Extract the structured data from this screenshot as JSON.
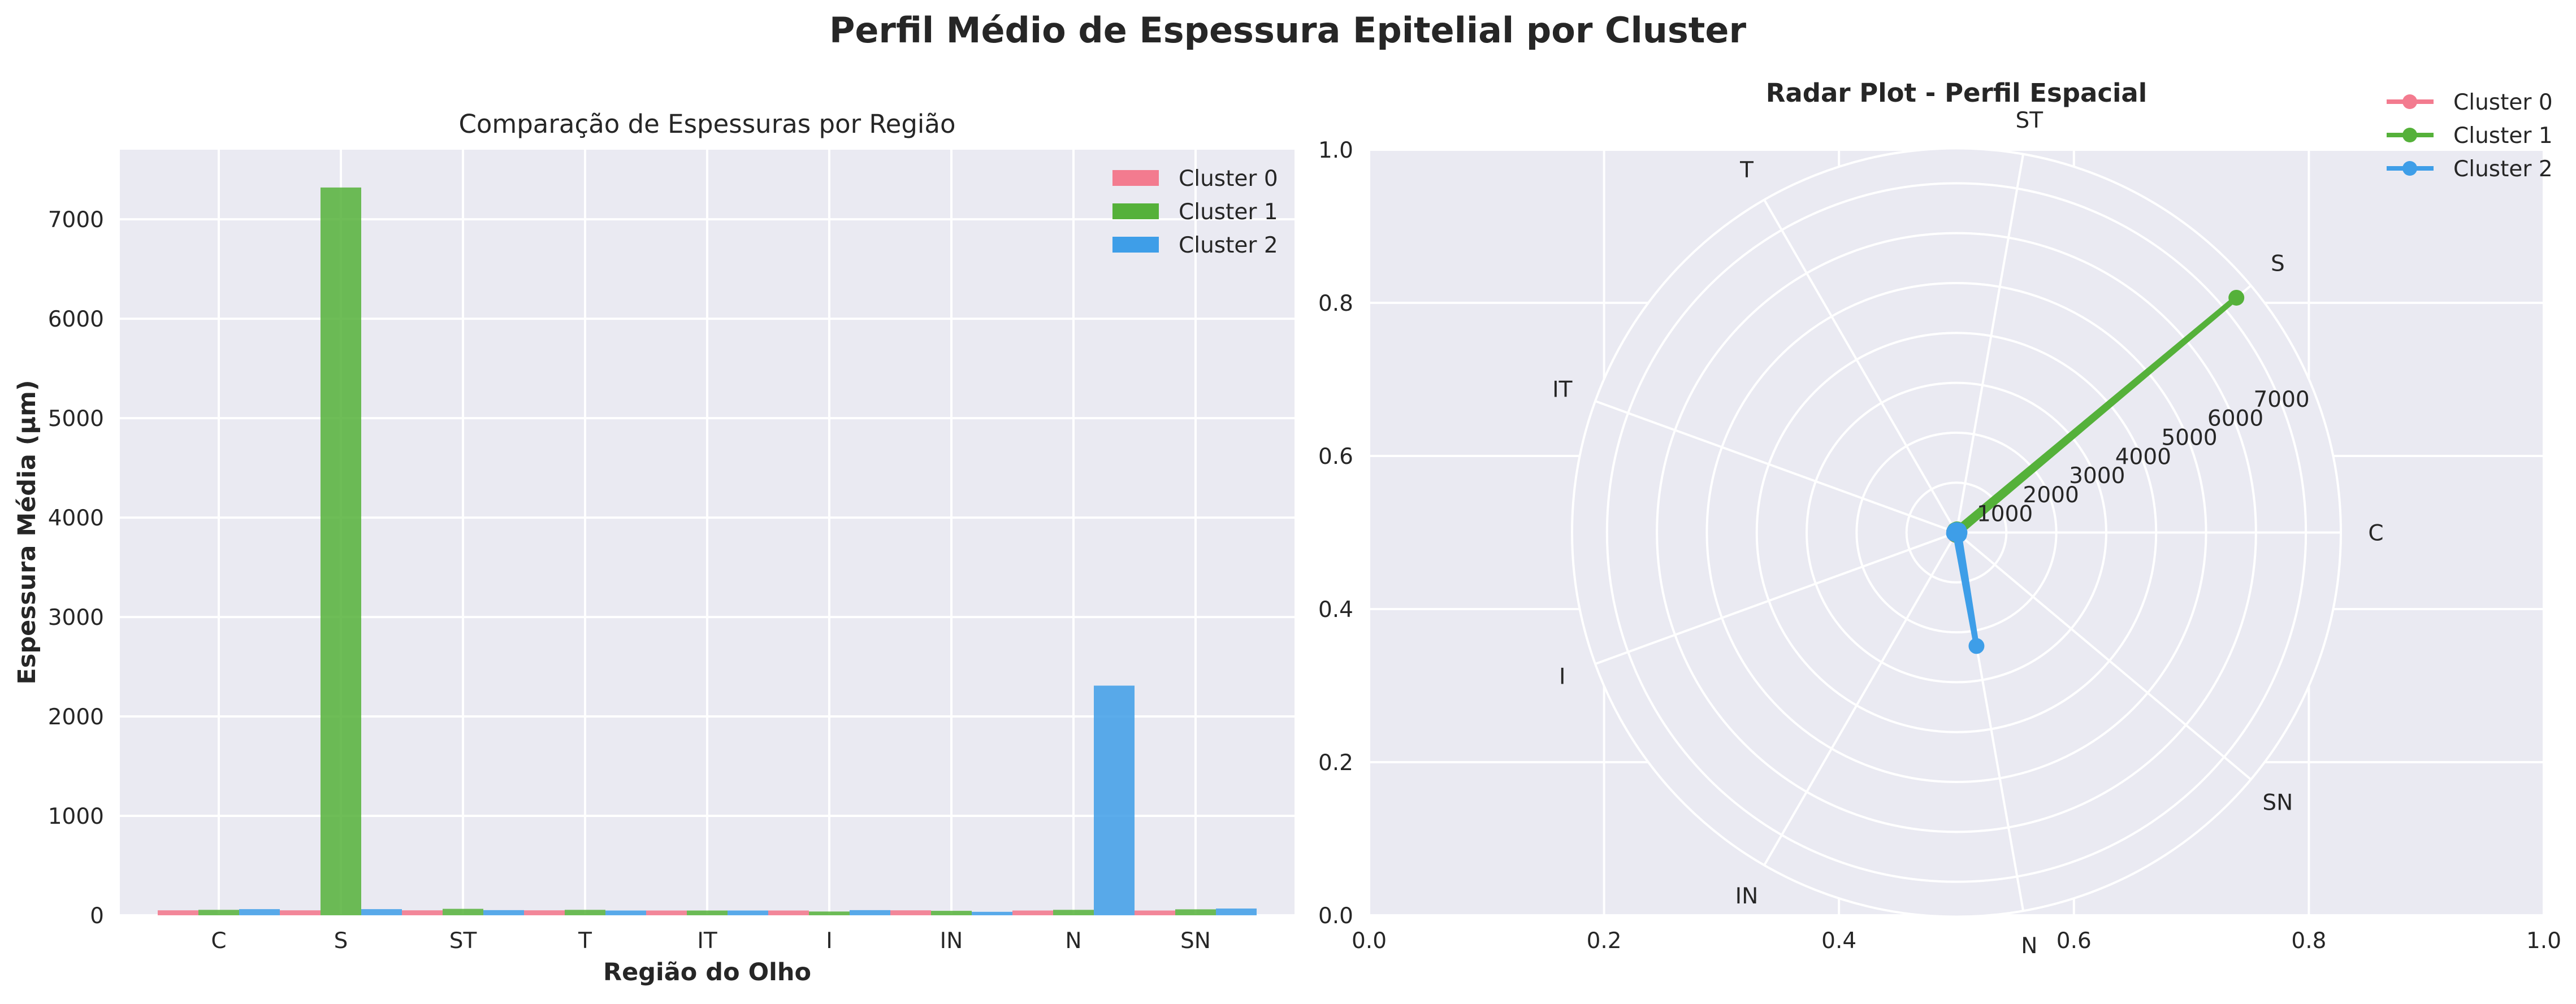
{
  "title": "Perfil Médio de Espessura Epitelial por Cluster",
  "colors": {
    "Cluster 0": "#f37b8f",
    "Cluster 1": "#55b13a",
    "Cluster 2": "#3e9ee8"
  },
  "chart_data": [
    {
      "type": "bar",
      "title": "Comparação de Espessuras por Região",
      "xlabel": "Região do Olho",
      "ylabel": "Espessura Média (μm)",
      "categories": [
        "C",
        "S",
        "ST",
        "T",
        "IT",
        "I",
        "IN",
        "N",
        "SN"
      ],
      "series": [
        {
          "name": "Cluster 0",
          "values": [
            50,
            50,
            50,
            50,
            48,
            48,
            50,
            48,
            48
          ]
        },
        {
          "name": "Cluster 1",
          "values": [
            55,
            7320,
            65,
            55,
            48,
            38,
            45,
            55,
            60
          ]
        },
        {
          "name": "Cluster 2",
          "values": [
            62,
            62,
            52,
            48,
            48,
            52,
            35,
            2310,
            68
          ]
        }
      ],
      "ylim": [
        0,
        7700
      ],
      "yticks": [
        0,
        1000,
        2000,
        3000,
        4000,
        5000,
        6000,
        7000
      ],
      "grid": true,
      "legend": "top-right"
    },
    {
      "type": "radar",
      "title": "Radar Plot - Perfil Espacial",
      "theta_labels": [
        "C",
        "S",
        "ST",
        "T",
        "IT",
        "I",
        "IN",
        "N",
        "SN"
      ],
      "theta_degrees": [
        0,
        40,
        80,
        120,
        160,
        200,
        240,
        280,
        320
      ],
      "r_ticks": [
        1000,
        2000,
        3000,
        4000,
        5000,
        6000,
        7000
      ],
      "r_max": 7700,
      "series": [
        {
          "name": "Cluster 0",
          "values": [
            50,
            50,
            50,
            50,
            48,
            48,
            50,
            48,
            48
          ]
        },
        {
          "name": "Cluster 1",
          "values": [
            55,
            7320,
            65,
            55,
            48,
            38,
            45,
            55,
            60
          ]
        },
        {
          "name": "Cluster 2",
          "values": [
            62,
            62,
            52,
            48,
            48,
            52,
            35,
            2310,
            68
          ]
        }
      ],
      "overlay_axes": {
        "xlim": [
          0,
          1
        ],
        "ylim": [
          0,
          1
        ],
        "xticks": [
          "0.0",
          "0.2",
          "0.4",
          "0.6",
          "0.8",
          "1.0"
        ],
        "yticks": [
          "0.0",
          "0.2",
          "0.4",
          "0.6",
          "0.8",
          "1.0"
        ]
      },
      "legend": "top-right"
    }
  ]
}
